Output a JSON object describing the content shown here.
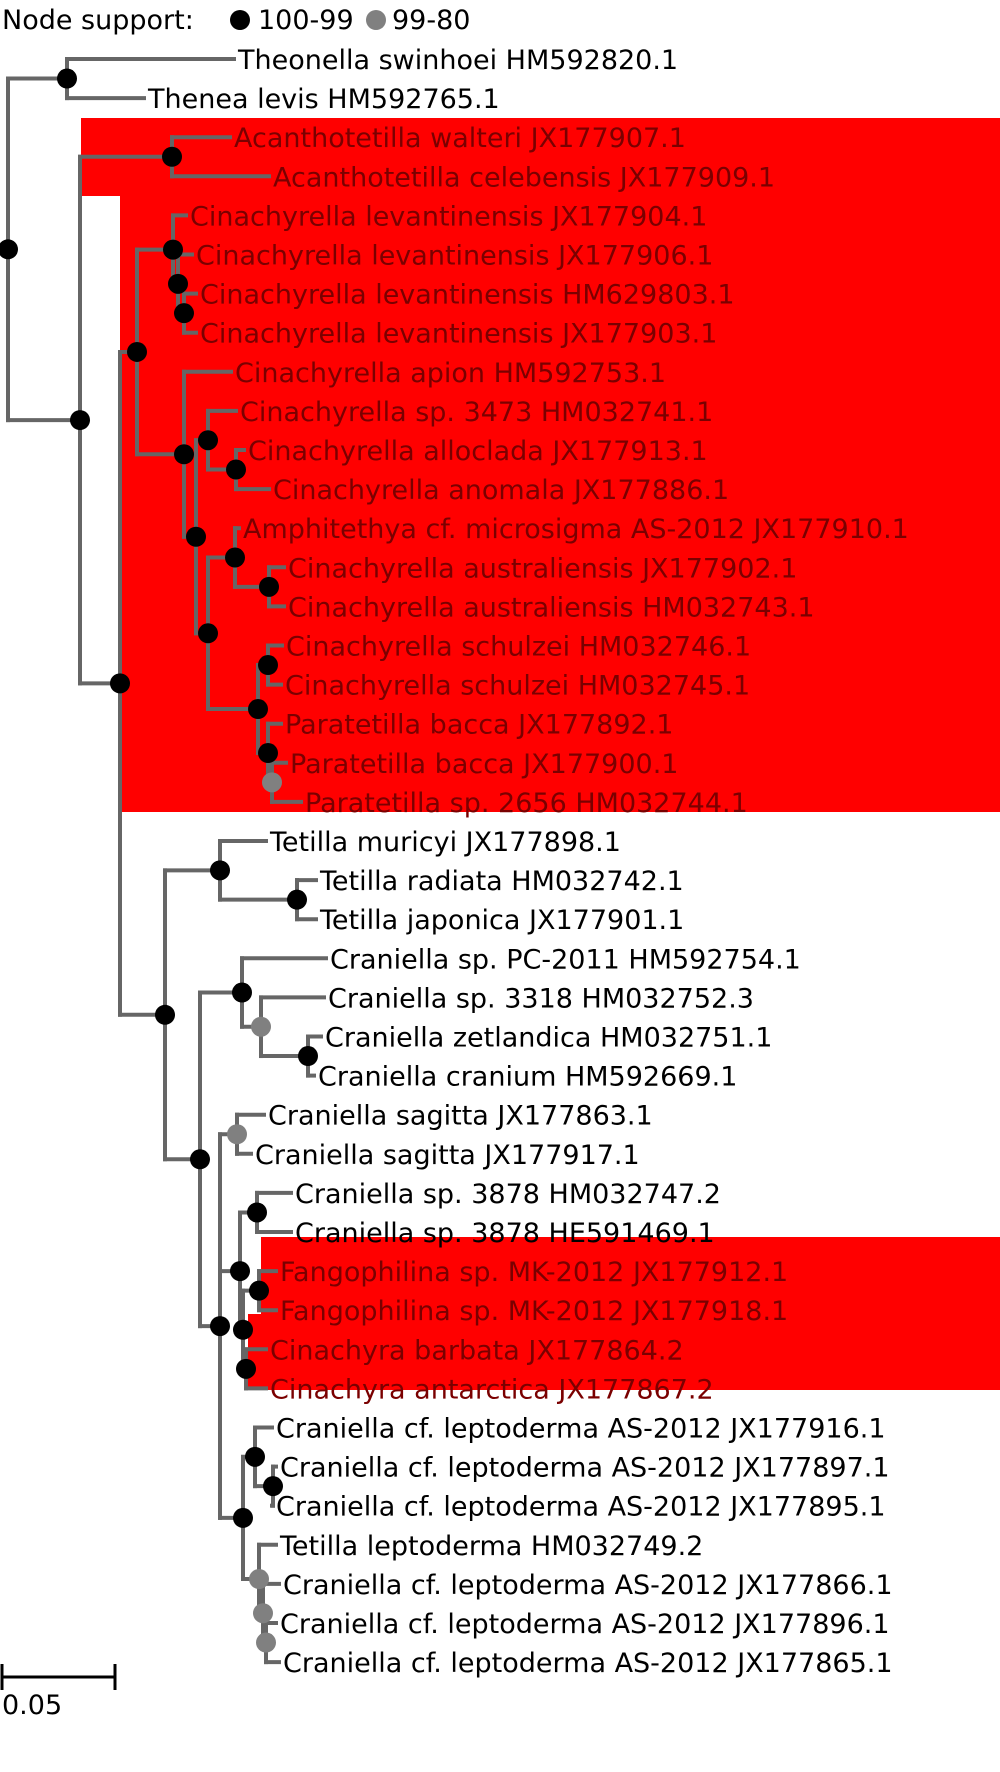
{
  "legend": {
    "title": "Node support:",
    "items": [
      {
        "label": "100-99",
        "color": "#000000"
      },
      {
        "label": "99-80",
        "color": "#808080"
      }
    ]
  },
  "scale_bar": {
    "label": "0.05"
  },
  "colors": {
    "branch": "#666666",
    "highlight": "#ff0000",
    "label_on_highlight": "#7a0000",
    "label": "#000000"
  },
  "taxa": [
    "Theonella swinhoei HM592820.1",
    "Thenea levis HM592765.1",
    "Acanthotetilla walteri JX177907.1",
    "Acanthotetilla celebensis JX177909.1",
    "Cinachyrella levantinensis JX177904.1",
    "Cinachyrella levantinensis JX177906.1",
    "Cinachyrella levantinensis HM629803.1",
    "Cinachyrella levantinensis JX177903.1",
    "Cinachyrella apion HM592753.1",
    "Cinachyrella sp. 3473 HM032741.1",
    "Cinachyrella alloclada JX177913.1",
    "Cinachyrella anomala JX177886.1",
    "Amphitethya cf. microsigma AS-2012 JX177910.1",
    "Cinachyrella australiensis JX177902.1",
    "Cinachyrella australiensis HM032743.1",
    "Cinachyrella schulzei HM032746.1",
    "Cinachyrella schulzei HM032745.1",
    "Paratetilla bacca JX177892.1",
    "Paratetilla bacca JX177900.1",
    "Paratetilla sp. 2656 HM032744.1",
    "Tetilla muricyi JX177898.1",
    "Tetilla radiata HM032742.1",
    "Tetilla japonica JX177901.1",
    "Craniella sp. PC-2011 HM592754.1",
    "Craniella sp. 3318 HM032752.3",
    "Craniella zetlandica HM032751.1",
    "Craniella cranium HM592669.1",
    "Craniella sagitta JX177863.1",
    "Craniella sagitta JX177917.1",
    "Craniella sp. 3878 HM032747.2",
    "Craniella sp. 3878 HE591469.1",
    "Fangophilina sp. MK-2012 JX177912.1",
    "Fangophilina sp. MK-2012 JX177918.1",
    "Cinachyra barbata JX177864.2",
    "Cinachyra antarctica JX177867.2",
    "Craniella cf. leptoderma AS-2012 JX177916.1",
    "Craniella cf. leptoderma AS-2012 JX177897.1",
    "Craniella cf. leptoderma AS-2012 JX177895.1",
    "Tetilla leptoderma HM032749.2",
    "Craniella cf. leptoderma AS-2012 JX177866.1",
    "Craniella cf. leptoderma AS-2012 JX177896.1",
    "Craniella cf. leptoderma AS-2012 JX177865.1"
  ],
  "highlighted_taxa_index_ranges": [
    [
      2,
      19
    ],
    [
      31,
      34
    ]
  ]
}
